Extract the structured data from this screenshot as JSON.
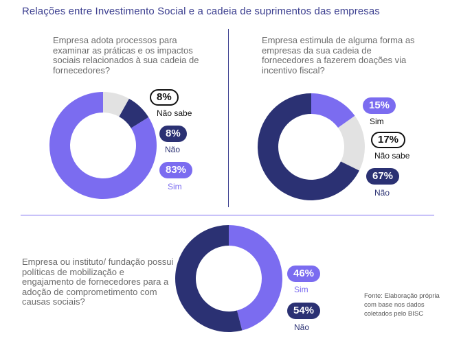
{
  "title": "Relações entre Investimento Social e a cadeia de suprimentos das empresas",
  "chart_data": [
    {
      "type": "pie",
      "question": "Empresa adota processos para examinar as práticas e os impactos sociais relacionados à sua cadeia de fornecedores?",
      "series": [
        {
          "label": "Não sabe",
          "display": "8%",
          "value": 8,
          "color": "#e2e2e2"
        },
        {
          "label": "Não",
          "display": "8%",
          "value": 8,
          "color": "#2b3173"
        },
        {
          "label": "Sim",
          "display": "83%",
          "value": 83,
          "color": "#7b6cf0"
        }
      ]
    },
    {
      "type": "pie",
      "question": "Empresa estimula de alguma forma as empresas da sua cadeia de fornecedores a fazerem doações via incentivo fiscal?",
      "series": [
        {
          "label": "Sim",
          "display": "15%",
          "value": 15,
          "color": "#7b6cf0"
        },
        {
          "label": "Não sabe",
          "display": "17%",
          "value": 17,
          "color": "#e2e2e2"
        },
        {
          "label": "Não",
          "display": "67%",
          "value": 67,
          "color": "#2b3173"
        }
      ]
    },
    {
      "type": "pie",
      "question": "Empresa ou instituto/ fundação possui políticas de mobilização e engajamento de fornecedores para a adoção de comprometimento com causas sociais?",
      "series": [
        {
          "label": "Sim",
          "display": "46%",
          "value": 46,
          "color": "#7b6cf0"
        },
        {
          "label": "Não",
          "display": "54%",
          "value": 54,
          "color": "#2b3173"
        }
      ]
    }
  ],
  "source": "Fonte: Elaboração própria com base nos dados coletados pelo BISC"
}
